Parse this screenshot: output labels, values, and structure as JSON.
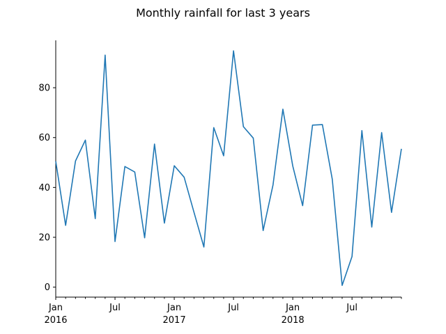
{
  "chart_data": {
    "type": "line",
    "title": "Monthly rainfall for last 3 years",
    "xlabel": "",
    "ylabel": "",
    "x_start": "2016-01",
    "x_end": "2018-12",
    "x_tick_labels": [
      {
        "month": "2016-01",
        "line1": "Jan",
        "line2": "2016"
      },
      {
        "month": "2016-07",
        "line1": "Jul",
        "line2": ""
      },
      {
        "month": "2017-01",
        "line1": "Jan",
        "line2": "2017"
      },
      {
        "month": "2017-07",
        "line1": "Jul",
        "line2": ""
      },
      {
        "month": "2018-01",
        "line1": "Jan",
        "line2": "2018"
      },
      {
        "month": "2018-07",
        "line1": "Jul",
        "line2": ""
      }
    ],
    "y_ticks": [
      0,
      20,
      40,
      60,
      80
    ],
    "ylim": [
      -4,
      99
    ],
    "grid": false,
    "series": [
      {
        "color": "#1f77b4",
        "x": [
          "2016-01",
          "2016-02",
          "2016-03",
          "2016-04",
          "2016-05",
          "2016-06",
          "2016-07",
          "2016-08",
          "2016-09",
          "2016-10",
          "2016-11",
          "2016-12",
          "2017-01",
          "2017-02",
          "2017-03",
          "2017-04",
          "2017-05",
          "2017-06",
          "2017-07",
          "2017-08",
          "2017-09",
          "2017-10",
          "2017-11",
          "2017-12",
          "2018-01",
          "2018-02",
          "2018-03",
          "2018-04",
          "2018-05",
          "2018-06",
          "2018-07",
          "2018-08",
          "2018-09",
          "2018-10",
          "2018-11",
          "2018-12"
        ],
        "values": [
          50.5,
          24.8,
          50.6,
          59.0,
          27.5,
          93.1,
          18.3,
          48.4,
          46.2,
          19.8,
          57.4,
          25.7,
          48.7,
          44.1,
          30.0,
          16.1,
          64.0,
          52.7,
          94.8,
          64.4,
          59.8,
          22.7,
          41.0,
          71.4,
          48.6,
          32.7,
          65.0,
          65.2,
          43.3,
          0.7,
          12.3,
          62.8,
          24.1,
          62.0,
          30.0,
          55.5
        ]
      }
    ]
  }
}
